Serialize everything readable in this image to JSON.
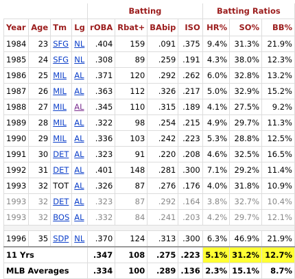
{
  "table": {
    "groups": [
      "Batting",
      "Batting Ratios"
    ],
    "columns": [
      "Year",
      "Age",
      "Tm",
      "Lg",
      "rOBA",
      "Rbat+",
      "BAbip",
      "ISO",
      "HR%",
      "SO%",
      "BB%"
    ],
    "rows": [
      [
        "1984",
        "23",
        "SFG",
        "NL",
        ".404",
        "159",
        ".091",
        ".375",
        "9.4%",
        "31.3%",
        "21.9%"
      ],
      [
        "1985",
        "24",
        "SFG",
        "NL",
        ".308",
        "89",
        ".259",
        ".191",
        "4.3%",
        "38.0%",
        "12.3%"
      ],
      [
        "1986",
        "25",
        "MIL",
        "AL",
        ".371",
        "120",
        ".292",
        ".262",
        "6.0%",
        "32.8%",
        "13.2%"
      ],
      [
        "1987",
        "26",
        "MIL",
        "AL",
        ".363",
        "112",
        ".326",
        ".217",
        "5.0%",
        "32.9%",
        "15.2%"
      ],
      [
        "1988",
        "27",
        "MIL",
        "AL",
        ".345",
        "110",
        ".315",
        ".189",
        "4.1%",
        "27.5%",
        "9.2%"
      ],
      [
        "1989",
        "28",
        "MIL",
        "AL",
        ".322",
        "98",
        ".254",
        ".215",
        "4.9%",
        "29.7%",
        "11.3%"
      ],
      [
        "1990",
        "29",
        "MIL",
        "AL",
        ".336",
        "103",
        ".242",
        ".223",
        "5.3%",
        "28.8%",
        "12.5%"
      ],
      [
        "1991",
        "30",
        "DET",
        "AL",
        ".323",
        "91",
        ".220",
        ".208",
        "4.6%",
        "32.5%",
        "16.5%"
      ],
      [
        "1992",
        "31",
        "DET",
        "AL",
        ".401",
        "148",
        ".281",
        ".300",
        "7.1%",
        "29.2%",
        "11.4%"
      ],
      [
        "1993",
        "32",
        "TOT",
        "AL",
        ".326",
        "87",
        ".276",
        ".176",
        "4.0%",
        "31.8%",
        "10.9%"
      ],
      [
        "1993",
        "32",
        "DET",
        "AL",
        ".323",
        "87",
        ".292",
        ".164",
        "3.8%",
        "32.7%",
        "10.4%"
      ],
      [
        "1993",
        "32",
        "BOS",
        "AL",
        ".332",
        "84",
        ".241",
        ".203",
        "4.2%",
        "29.7%",
        "12.1%"
      ],
      [
        "1996",
        "35",
        "SDP",
        "NL",
        ".370",
        "124",
        ".313",
        ".300",
        "6.3%",
        "46.9%",
        "21.9%"
      ]
    ],
    "footer": [
      [
        "11 Yrs",
        ".347",
        "108",
        ".275",
        ".223",
        "5.1%",
        "31.2%",
        "12.7%"
      ],
      [
        "MLB Averages",
        ".334",
        "100",
        ".289",
        ".136",
        "2.3%",
        "15.1%",
        "8.7%"
      ]
    ]
  }
}
